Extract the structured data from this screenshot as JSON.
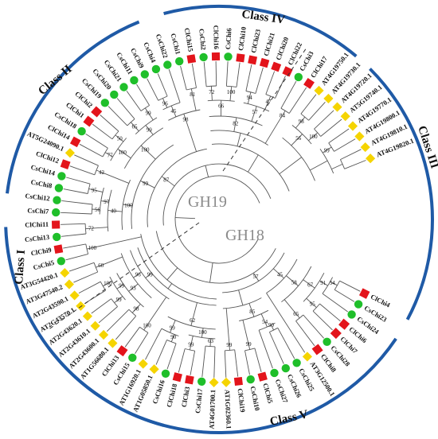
{
  "families": [
    {
      "key": "gh19",
      "label": "GH19"
    },
    {
      "key": "gh18",
      "label": "GH18"
    }
  ],
  "classes": [
    {
      "key": "class1",
      "label": "Class I"
    },
    {
      "key": "class2",
      "label": "Class II"
    },
    {
      "key": "class3",
      "label": "Class III"
    },
    {
      "key": "class4",
      "label": "Class IV"
    },
    {
      "key": "class5",
      "label": "Class V"
    }
  ],
  "marker_legend": {
    "yellow_diamond": {
      "color": "#f5d400",
      "shape": "diamond",
      "species": "AT"
    },
    "green_circle": {
      "color": "#1fbf2a",
      "shape": "circle",
      "species": "Cs"
    },
    "red_square": {
      "color": "#e3141b",
      "shape": "square",
      "species": "Cl"
    }
  },
  "leaves": [
    {
      "label": "ClChi4",
      "marker": "red_square"
    },
    {
      "label": "CsChi23",
      "marker": "green_circle"
    },
    {
      "label": "CsChi24",
      "marker": "green_circle"
    },
    {
      "label": "ClChi6",
      "marker": "red_square"
    },
    {
      "label": "ClChi7",
      "marker": "red_square"
    },
    {
      "label": "CsChi28",
      "marker": "green_circle"
    },
    {
      "label": "ClChi8",
      "marker": "red_square"
    },
    {
      "label": "AT3G12500.1",
      "marker": "yellow_diamond"
    },
    {
      "label": "CsChi25",
      "marker": "green_circle"
    },
    {
      "label": "CsChi26",
      "marker": "green_circle"
    },
    {
      "label": "CsChi27",
      "marker": "green_circle"
    },
    {
      "label": "ClChi5",
      "marker": "red_square"
    },
    {
      "label": "CsChi10",
      "marker": "green_circle"
    },
    {
      "label": "ClChi19",
      "marker": "red_square"
    },
    {
      "label": "AT1G02360.1",
      "marker": "yellow_diamond"
    },
    {
      "label": "AT4G01700.1",
      "marker": "yellow_diamond"
    },
    {
      "label": "CsChi17",
      "marker": "green_circle"
    },
    {
      "label": "ClChi3",
      "marker": "red_square"
    },
    {
      "label": "ClChi18",
      "marker": "red_square"
    },
    {
      "label": "CsChi16",
      "marker": "green_circle"
    },
    {
      "label": "AT1G05850.1",
      "marker": "yellow_diamond"
    },
    {
      "label": "AT1G16920.1",
      "marker": "yellow_diamond"
    },
    {
      "label": "CsChi15",
      "marker": "green_circle"
    },
    {
      "label": "ClChi13",
      "marker": "red_square"
    },
    {
      "label": "AT1G56680.1",
      "marker": "yellow_diamond"
    },
    {
      "label": "AT2G43600.1",
      "marker": "yellow_diamond"
    },
    {
      "label": "AT2G43610.1",
      "marker": "yellow_diamond"
    },
    {
      "label": "AT2G43620.1",
      "marker": "yellow_diamond"
    },
    {
      "label": "AT2G43570.1",
      "marker": "yellow_diamond"
    },
    {
      "label": "AT2G43590.1",
      "marker": "yellow_diamond"
    },
    {
      "label": "AT3G47540.2",
      "marker": "yellow_diamond"
    },
    {
      "label": "AT3G54420.1",
      "marker": "yellow_diamond"
    },
    {
      "label": "CsChi5",
      "marker": "green_circle"
    },
    {
      "label": "ClChi9",
      "marker": "red_square"
    },
    {
      "label": "CsChi13",
      "marker": "green_circle"
    },
    {
      "label": "ClChi11",
      "marker": "red_square"
    },
    {
      "label": "CsChi7",
      "marker": "green_circle"
    },
    {
      "label": "CsChi12",
      "marker": "green_circle"
    },
    {
      "label": "CsChi8",
      "marker": "green_circle"
    },
    {
      "label": "CsChi14",
      "marker": "green_circle"
    },
    {
      "label": "ClChi12",
      "marker": "red_square"
    },
    {
      "label": "AT5G24090.1",
      "marker": "yellow_diamond"
    },
    {
      "label": "ClChi14",
      "marker": "red_square"
    },
    {
      "label": "CsChi18",
      "marker": "green_circle"
    },
    {
      "label": "ClChi1",
      "marker": "red_square"
    },
    {
      "label": "ClChi2",
      "marker": "red_square"
    },
    {
      "label": "CsChi19",
      "marker": "green_circle"
    },
    {
      "label": "CsChi20",
      "marker": "green_circle"
    },
    {
      "label": "CsChi21",
      "marker": "green_circle"
    },
    {
      "label": "CsChi11",
      "marker": "green_circle"
    },
    {
      "label": "CsChi9",
      "marker": "green_circle"
    },
    {
      "label": "CsChi4",
      "marker": "green_circle"
    },
    {
      "label": "CsChi22",
      "marker": "green_circle"
    },
    {
      "label": "CsChi1",
      "marker": "green_circle"
    },
    {
      "label": "ClChi15",
      "marker": "red_square"
    },
    {
      "label": "CsChi2",
      "marker": "green_circle"
    },
    {
      "label": "ClChi16",
      "marker": "red_square"
    },
    {
      "label": "CsChi6",
      "marker": "green_circle"
    },
    {
      "label": "ClChi10",
      "marker": "red_square"
    },
    {
      "label": "ClChi23",
      "marker": "red_square"
    },
    {
      "label": "ClChi21",
      "marker": "red_square"
    },
    {
      "label": "ClChi20",
      "marker": "red_square"
    },
    {
      "label": "ClChi22",
      "marker": "red_square"
    },
    {
      "label": "CsChi3",
      "marker": "green_circle"
    },
    {
      "label": "ClChi17",
      "marker": "red_square"
    },
    {
      "label": "AT4G19750.1",
      "marker": "yellow_diamond"
    },
    {
      "label": "AT4G19730.1",
      "marker": "yellow_diamond"
    },
    {
      "label": "AT4G19720.1",
      "marker": "yellow_diamond"
    },
    {
      "label": "AT5G19740.1",
      "marker": "yellow_diamond"
    },
    {
      "label": "AT4G19770.1",
      "marker": "yellow_diamond"
    },
    {
      "label": "AT4G19800.1",
      "marker": "yellow_diamond"
    },
    {
      "label": "AT4G19810.1",
      "marker": "yellow_diamond"
    },
    {
      "label": "AT4G19820.1",
      "marker": "yellow_diamond"
    }
  ],
  "bootstrap_values": [
    "54",
    "91",
    "95",
    "67",
    "65",
    "58",
    "45",
    "90",
    "54",
    "99",
    "85",
    "99",
    "57",
    "63",
    "99",
    "100",
    "90",
    "99",
    "62",
    "100",
    "98",
    "99",
    "100",
    "99",
    "93",
    "60",
    "96",
    "99",
    "100",
    "72",
    "56",
    "95",
    "97",
    "40",
    "42",
    "100",
    "77",
    "50",
    "100",
    "65",
    "99",
    "99",
    "100",
    "99",
    "96",
    "45",
    "81",
    "98",
    "87",
    "72",
    "100",
    "66",
    "94",
    "47",
    "57",
    "82",
    "84",
    "98",
    "100",
    "56",
    "99"
  ]
}
